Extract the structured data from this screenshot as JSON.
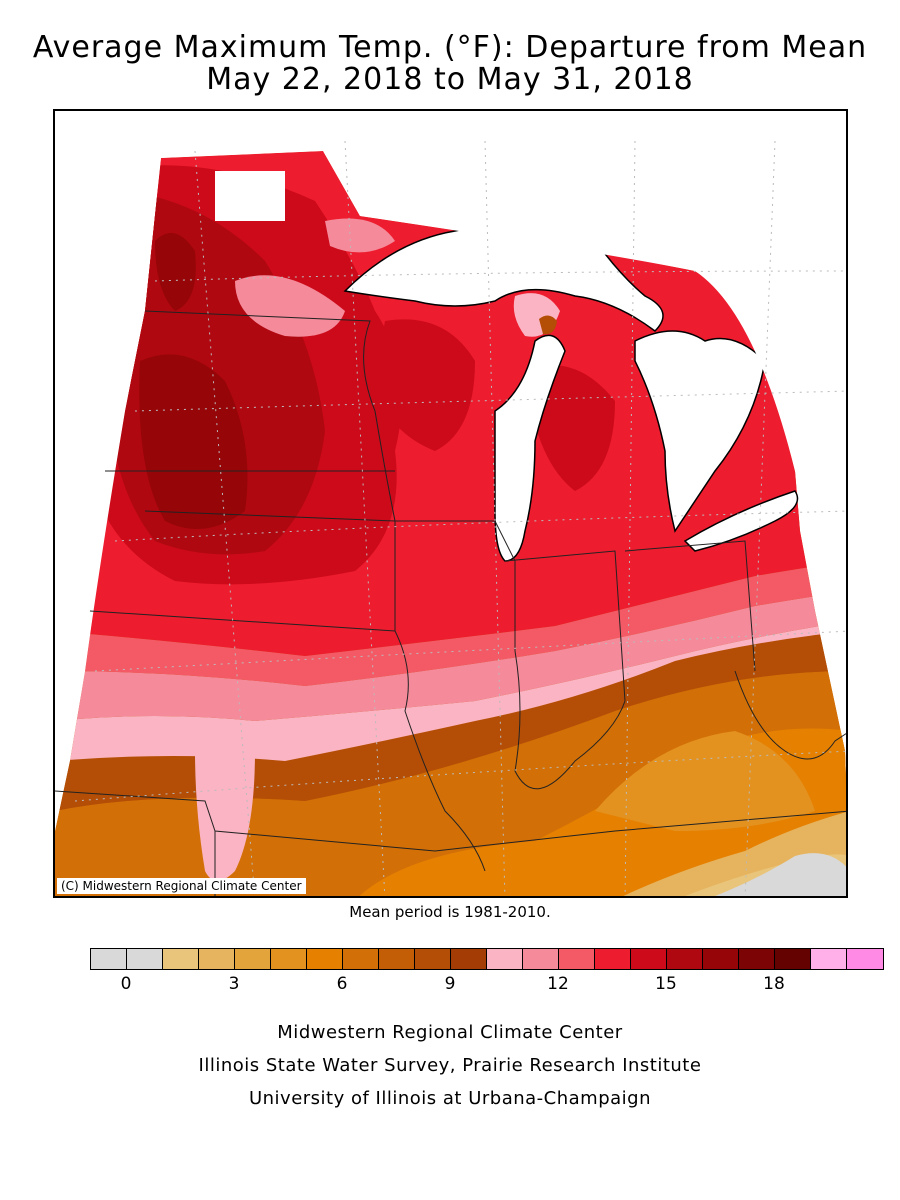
{
  "title_line1": "Average Maximum Temp. (°F): Departure from Mean",
  "title_line2": "May 22, 2018 to May 31, 2018",
  "credit": "(C) Midwestern Regional Climate Center",
  "mean_note": "Mean period is 1981-2010.",
  "legend": {
    "colors": [
      "#d9d9d9",
      "#d9d9d9",
      "#e9c57c",
      "#e6b45e",
      "#e4a43c",
      "#e39220",
      "#e68000",
      "#d26f06",
      "#c35e06",
      "#b44e06",
      "#a43c06",
      "#fab4c3",
      "#f48a9a",
      "#f45a66",
      "#ed1c2e",
      "#cc0a1a",
      "#b00810",
      "#960508",
      "#7c0404",
      "#640202",
      "#ffb0e8",
      "#ff8ae6"
    ],
    "tick_labels": [
      "0",
      "3",
      "6",
      "9",
      "12",
      "15",
      "18"
    ]
  },
  "footer": {
    "line1": "Midwestern Regional Climate Center",
    "line2": "Illinois State Water Survey, Prairie Research Institute",
    "line3": "University of Illinois at Urbana-Champaign"
  }
}
